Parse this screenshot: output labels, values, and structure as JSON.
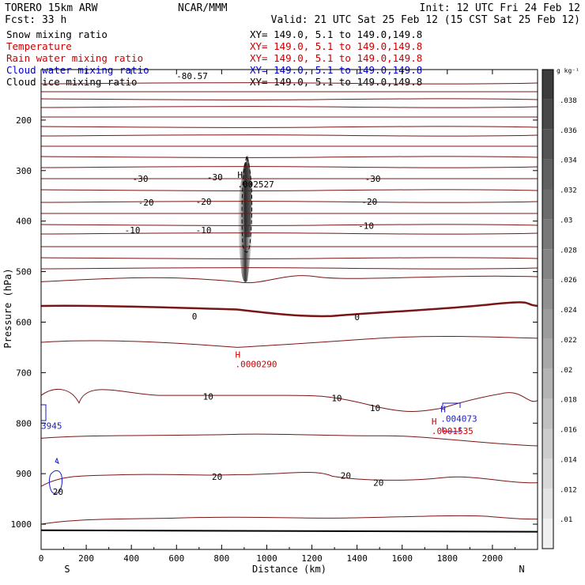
{
  "header": {
    "model": "TORERO   15km ARW",
    "org": "NCAR/MMM",
    "init": "Init: 12 UTC Fri 24 Feb 12",
    "fcst": "Fcst:    33 h",
    "valid": "Valid: 21 UTC Sat 25 Feb 12 (15 CST Sat 25 Feb 12)"
  },
  "fields": [
    {
      "name": "Snow mixing ratio",
      "xy": "XY= 149.0,  5.1 to 149.0,149.8",
      "color": "#000000"
    },
    {
      "name": "Temperature",
      "xy": "XY= 149.0,  5.1 to 149.0,149.8",
      "color": "#cc0000"
    },
    {
      "name": "Rain water mixing ratio",
      "xy": "XY= 149.0,  5.1 to 149.0,149.8",
      "color": "#cc0000"
    },
    {
      "name": "Cloud water mixing ratio",
      "xy": "XY= 149.0,  5.1 to 149.0,149.8",
      "color": "#0000cc"
    },
    {
      "name": "Cloud ice mixing ratio",
      "xy": "XY= 149.0,  5.1 to 149.0,149.8",
      "color": "#000000"
    }
  ],
  "colors": {
    "isotherm": "#7a1515",
    "red_label": "#cc0000",
    "blue": "#1a1acc",
    "shade_dark": "#333333"
  },
  "chart_data": {
    "type": "contour",
    "xlabel": "Distance (km)",
    "ylabel": "Pressure (hPa)",
    "xlim": [
      0,
      2200
    ],
    "ylim": [
      1050,
      100
    ],
    "x_ticks": [
      0,
      200,
      400,
      600,
      800,
      1000,
      1200,
      1400,
      1600,
      1800,
      2000
    ],
    "y_ticks": [
      200,
      300,
      400,
      500,
      600,
      700,
      800,
      900,
      1000
    ],
    "end_labels": {
      "left": "S",
      "right": "N"
    },
    "colorbar": {
      "unit": "g kg⁻¹",
      "ticks": [
        ".038",
        ".036",
        ".034",
        ".032",
        ".03",
        ".028",
        ".026",
        ".024",
        ".022",
        ".02",
        ".018",
        ".016",
        ".014",
        ".012",
        ".01"
      ]
    },
    "isotherm_labels": [
      {
        "text": "-30",
        "x": 440,
        "p": 316
      },
      {
        "text": "-30",
        "x": 770,
        "p": 313
      },
      {
        "text": "-30",
        "x": 1470,
        "p": 316
      },
      {
        "text": "-20",
        "x": 465,
        "p": 363
      },
      {
        "text": "-20",
        "x": 720,
        "p": 361
      },
      {
        "text": "-20",
        "x": 1455,
        "p": 361
      },
      {
        "text": "-10",
        "x": 405,
        "p": 418
      },
      {
        "text": "-10",
        "x": 720,
        "p": 418
      },
      {
        "text": "-10",
        "x": 1440,
        "p": 409
      },
      {
        "text": "0",
        "x": 680,
        "p": 588
      },
      {
        "text": "0",
        "x": 1400,
        "p": 590
      },
      {
        "text": "10",
        "x": 740,
        "p": 747
      },
      {
        "text": "10",
        "x": 1310,
        "p": 750
      },
      {
        "text": "10",
        "x": 1480,
        "p": 770
      },
      {
        "text": "20",
        "x": 780,
        "p": 906
      },
      {
        "text": "20",
        "x": 1350,
        "p": 904
      },
      {
        "text": "20",
        "x": 1495,
        "p": 918
      },
      {
        "text": "20",
        "x": 75,
        "p": 936
      }
    ],
    "top_value": "-80.57",
    "maxima": [
      {
        "text": "H",
        "value": ".002527",
        "x": 870,
        "p": 324,
        "color": "#000000"
      },
      {
        "text": "H",
        "value": ".0000290",
        "x": 860,
        "p": 680,
        "color": "#cc0000"
      },
      {
        "text": "H",
        "value": ".004073",
        "x": 1770,
        "p": 788,
        "color": "#1a1acc"
      },
      {
        "text": "H",
        "value": ".0001535",
        "x": 1730,
        "p": 812,
        "color": "#cc0000"
      },
      {
        "text": "",
        "value": "3945",
        "x": 0,
        "p": 802,
        "color": "#1a1acc"
      }
    ]
  }
}
